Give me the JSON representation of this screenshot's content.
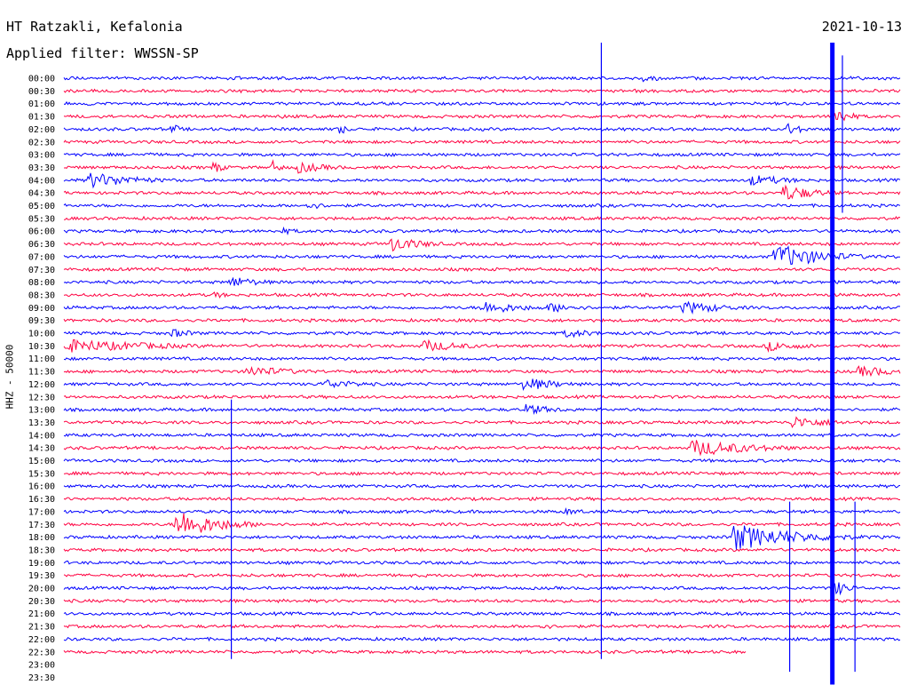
{
  "header": {
    "station": "HT Ratzakli, Kefalonia",
    "filter_label": "Applied filter: WWSSN-SP",
    "date": "2021-10-13"
  },
  "chart_data": {
    "type": "line",
    "title": "HT Ratzakli, Kefalonia",
    "subtitle": "Applied filter: WWSSN-SP",
    "date": "2021-10-13",
    "ylabel": "HHZ - 50000",
    "xlabel": "",
    "grid": false,
    "row_interval_minutes": 30,
    "row_labels": [
      "00:00",
      "00:30",
      "01:00",
      "01:30",
      "02:00",
      "02:30",
      "03:00",
      "03:30",
      "04:00",
      "04:30",
      "05:00",
      "05:30",
      "06:00",
      "06:30",
      "07:00",
      "07:30",
      "08:00",
      "08:30",
      "09:00",
      "09:30",
      "10:00",
      "10:30",
      "11:00",
      "11:30",
      "12:00",
      "12:30",
      "13:00",
      "13:30",
      "14:00",
      "14:30",
      "15:00",
      "15:30",
      "16:00",
      "16:30",
      "17:00",
      "17:30",
      "18:00",
      "18:30",
      "19:00",
      "19:30",
      "20:00",
      "20:30",
      "21:00",
      "21:30",
      "22:00",
      "22:30",
      "23:00",
      "23:30"
    ],
    "trace_colors": [
      "#0000ff",
      "#ff0040"
    ],
    "recorded_rows": 46,
    "last_trace_end_fraction": 0.815,
    "events": [
      {
        "row": 0,
        "time": 0.69,
        "amp": 0.6,
        "dur": 0.04
      },
      {
        "row": 1,
        "time": 0.67,
        "amp": 0.4,
        "dur": 0.05
      },
      {
        "row": 3,
        "time": 0.26,
        "amp": 0.35,
        "dur": 0.03
      },
      {
        "row": 3,
        "time": 0.92,
        "amp": 1.6,
        "dur": 0.02
      },
      {
        "row": 4,
        "time": 0.13,
        "amp": 1.0,
        "dur": 0.01
      },
      {
        "row": 4,
        "time": 0.33,
        "amp": 1.0,
        "dur": 0.01
      },
      {
        "row": 4,
        "time": 0.865,
        "amp": 1.1,
        "dur": 0.02
      },
      {
        "row": 6,
        "time": 0.1,
        "amp": 0.5,
        "dur": 0.01
      },
      {
        "row": 7,
        "time": 0.18,
        "amp": 1.3,
        "dur": 0.01
      },
      {
        "row": 7,
        "time": 0.25,
        "amp": 1.2,
        "dur": 0.01
      },
      {
        "row": 7,
        "time": 0.28,
        "amp": 1.0,
        "dur": 0.04
      },
      {
        "row": 8,
        "time": 0.03,
        "amp": 1.4,
        "dur": 0.06
      },
      {
        "row": 8,
        "time": 0.82,
        "amp": 1.0,
        "dur": 0.05
      },
      {
        "row": 9,
        "time": 0.86,
        "amp": 1.5,
        "dur": 0.04
      },
      {
        "row": 10,
        "time": 0.29,
        "amp": 0.7,
        "dur": 0.03
      },
      {
        "row": 12,
        "time": 0.26,
        "amp": 0.6,
        "dur": 0.03
      },
      {
        "row": 13,
        "time": 0.39,
        "amp": 1.4,
        "dur": 0.04
      },
      {
        "row": 14,
        "time": 0.85,
        "amp": 2.2,
        "dur": 0.06
      },
      {
        "row": 16,
        "time": 0.2,
        "amp": 1.0,
        "dur": 0.04
      },
      {
        "row": 17,
        "time": 0.18,
        "amp": 0.6,
        "dur": 0.02
      },
      {
        "row": 18,
        "time": 0.5,
        "amp": 1.2,
        "dur": 0.05
      },
      {
        "row": 18,
        "time": 0.58,
        "amp": 0.9,
        "dur": 0.04
      },
      {
        "row": 18,
        "time": 0.74,
        "amp": 1.2,
        "dur": 0.05
      },
      {
        "row": 20,
        "time": 0.13,
        "amp": 0.8,
        "dur": 0.03
      },
      {
        "row": 20,
        "time": 0.6,
        "amp": 0.8,
        "dur": 0.04
      },
      {
        "row": 21,
        "time": 0.0,
        "amp": 1.2,
        "dur": 0.12
      },
      {
        "row": 21,
        "time": 0.43,
        "amp": 1.1,
        "dur": 0.05
      },
      {
        "row": 21,
        "time": 0.84,
        "amp": 0.9,
        "dur": 0.05
      },
      {
        "row": 23,
        "time": 0.22,
        "amp": 1.0,
        "dur": 0.06
      },
      {
        "row": 23,
        "time": 0.95,
        "amp": 1.0,
        "dur": 0.05
      },
      {
        "row": 24,
        "time": 0.31,
        "amp": 0.9,
        "dur": 0.05
      },
      {
        "row": 24,
        "time": 0.55,
        "amp": 1.3,
        "dur": 0.04
      },
      {
        "row": 26,
        "time": 0.55,
        "amp": 1.0,
        "dur": 0.04
      },
      {
        "row": 27,
        "time": 0.87,
        "amp": 1.1,
        "dur": 0.05
      },
      {
        "row": 29,
        "time": 0.75,
        "amp": 1.5,
        "dur": 0.08
      },
      {
        "row": 34,
        "time": 0.6,
        "amp": 0.6,
        "dur": 0.03
      },
      {
        "row": 35,
        "time": 0.135,
        "amp": 2.6,
        "dur": 0.05
      },
      {
        "row": 36,
        "time": 0.8,
        "amp": 2.3,
        "dur": 0.08
      },
      {
        "row": 36,
        "time": 0.86,
        "amp": 1.0,
        "dur": 0.05
      },
      {
        "row": 40,
        "time": 0.92,
        "amp": 1.4,
        "dur": 0.02
      },
      {
        "row": 43,
        "time": 0.57,
        "amp": 0.6,
        "dur": 0.02
      }
    ],
    "spikes": [
      {
        "time": 0.642,
        "from_row": 0,
        "to_row": 45
      },
      {
        "time": 0.918,
        "from_row": 0,
        "to_row": 47
      },
      {
        "time": 0.93,
        "from_row": 1,
        "to_row": 10
      },
      {
        "time": 0.945,
        "from_row": 36,
        "to_row": 46
      },
      {
        "time": 0.2,
        "from_row": 28,
        "to_row": 45
      },
      {
        "time": 0.867,
        "from_row": 36,
        "to_row": 46
      }
    ]
  }
}
